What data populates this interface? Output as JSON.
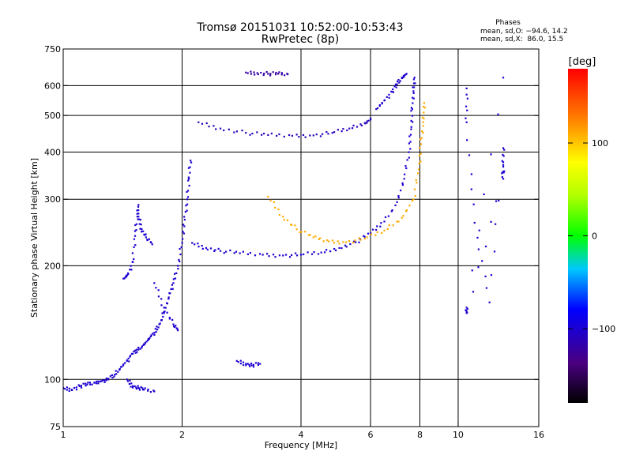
{
  "chart_data": {
    "type": "scatter",
    "title": "Tromsø 20151031 10:52:00-10:53:43",
    "subtitle": "RwPretec (8p)",
    "xlabel": "Frequency [MHz]",
    "ylabel": "Stationary phase Virtual Height [km]",
    "x_scale": "log",
    "y_scale": "log",
    "xlim": [
      1,
      16
    ],
    "ylim": [
      75,
      750
    ],
    "x_ticks": [
      1,
      2,
      4,
      6,
      8,
      10,
      16
    ],
    "x_tick_labels": [
      "1",
      "2",
      "4",
      "6",
      "8",
      "10",
      "16"
    ],
    "y_ticks": [
      75,
      100,
      200,
      300,
      400,
      500,
      600,
      750
    ],
    "y_tick_labels": [
      "75",
      "100",
      "200",
      "300",
      "400",
      "500",
      "600",
      "750"
    ],
    "grid_x": [
      2,
      4,
      6,
      8,
      10
    ],
    "grid_y": [
      100,
      200,
      300,
      400,
      500,
      600
    ],
    "grid": true,
    "stats": {
      "heading": "Phases",
      "line_o": "mean, sd,O: −94.6, 14.2",
      "line_x": "mean, sd,X:  86.0, 15.5"
    },
    "colorbar": {
      "label": "[deg]",
      "range": [
        -180,
        180
      ],
      "ticks": [
        100,
        0,
        -100
      ],
      "tick_labels": [
        "100",
        "0",
        "−100"
      ]
    },
    "traces": [
      {
        "name": "",
        "phase": -100,
        "points": [
          [
            1.0,
            95
          ],
          [
            1.05,
            94
          ],
          [
            1.1,
            96
          ],
          [
            1.15,
            97
          ],
          [
            1.2,
            98
          ],
          [
            1.25,
            99
          ],
          [
            1.3,
            100
          ],
          [
            1.35,
            103
          ],
          [
            1.4,
            108
          ],
          [
            1.45,
            112
          ],
          [
            1.5,
            117
          ],
          [
            1.55,
            120
          ],
          [
            1.6,
            124
          ],
          [
            1.65,
            128
          ],
          [
            1.7,
            133
          ],
          [
            1.75,
            140
          ],
          [
            1.8,
            150
          ],
          [
            1.85,
            165
          ],
          [
            1.9,
            180
          ],
          [
            1.95,
            200
          ],
          [
            2.0,
            230
          ],
          [
            2.03,
            265
          ],
          [
            2.06,
            300
          ],
          [
            2.08,
            340
          ],
          [
            2.1,
            380
          ]
        ]
      },
      {
        "name": "",
        "phase": -100,
        "points": [
          [
            1.42,
            185
          ],
          [
            1.46,
            190
          ],
          [
            1.5,
            205
          ],
          [
            1.52,
            240
          ],
          [
            1.54,
            270
          ],
          [
            1.55,
            290
          ]
        ]
      },
      {
        "name": "",
        "phase": -100,
        "points": [
          [
            1.55,
            270
          ],
          [
            1.58,
            250
          ],
          [
            1.62,
            238
          ],
          [
            1.68,
            228
          ]
        ]
      },
      {
        "name": "",
        "phase": -100,
        "points": [
          [
            1.7,
            180
          ],
          [
            1.8,
            155
          ],
          [
            1.9,
            140
          ],
          [
            1.95,
            135
          ]
        ]
      },
      {
        "name": "",
        "phase": -100,
        "points": [
          [
            1.45,
            100
          ],
          [
            1.5,
            96
          ],
          [
            1.55,
            95
          ],
          [
            1.6,
            94
          ],
          [
            1.7,
            93
          ]
        ]
      },
      {
        "name": "",
        "phase": -100,
        "points": [
          [
            2.12,
            230
          ],
          [
            2.3,
            223
          ],
          [
            2.5,
            219
          ],
          [
            2.8,
            216
          ],
          [
            3.2,
            214
          ],
          [
            3.6,
            213
          ],
          [
            4.0,
            214
          ],
          [
            4.5,
            217
          ],
          [
            5.0,
            223
          ],
          [
            5.5,
            231
          ],
          [
            6.0,
            244
          ],
          [
            6.5,
            262
          ],
          [
            7.0,
            295
          ],
          [
            7.3,
            340
          ],
          [
            7.5,
            400
          ],
          [
            7.6,
            460
          ],
          [
            7.65,
            520
          ],
          [
            7.7,
            580
          ],
          [
            7.75,
            630
          ]
        ]
      },
      {
        "name": "",
        "phase": 110,
        "points": [
          [
            3.3,
            305
          ],
          [
            3.6,
            270
          ],
          [
            3.9,
            250
          ],
          [
            4.3,
            238
          ],
          [
            4.7,
            232
          ],
          [
            5.2,
            231
          ],
          [
            5.8,
            236
          ],
          [
            6.5,
            248
          ],
          [
            7.2,
            268
          ],
          [
            7.7,
            300
          ],
          [
            7.95,
            360
          ],
          [
            8.05,
            420
          ],
          [
            8.15,
            480
          ],
          [
            8.2,
            540
          ]
        ]
      },
      {
        "name": "",
        "phase": -110,
        "points": [
          [
            2.2,
            480
          ],
          [
            2.5,
            462
          ],
          [
            2.9,
            450
          ],
          [
            3.3,
            444
          ],
          [
            3.8,
            442
          ],
          [
            4.3,
            443
          ],
          [
            4.8,
            450
          ],
          [
            5.3,
            462
          ],
          [
            5.8,
            478
          ],
          [
            6.0,
            488
          ]
        ]
      },
      {
        "name": "",
        "phase": -100,
        "points": [
          [
            6.2,
            520
          ],
          [
            6.5,
            548
          ],
          [
            6.8,
            578
          ],
          [
            7.0,
            605
          ],
          [
            7.2,
            630
          ],
          [
            7.4,
            645
          ]
        ]
      },
      {
        "name": "",
        "phase": -120,
        "points": [
          [
            2.9,
            650
          ],
          [
            3.1,
            648
          ],
          [
            3.3,
            645
          ],
          [
            3.5,
            645
          ],
          [
            3.7,
            643
          ]
        ]
      },
      {
        "name": "",
        "phase": -100,
        "points": [
          [
            2.75,
            112
          ],
          [
            2.9,
            110
          ],
          [
            3.0,
            109
          ],
          [
            3.15,
            110
          ]
        ]
      },
      {
        "name": "",
        "phase": -100,
        "points": [
          [
            10.5,
            590
          ],
          [
            10.5,
            480
          ],
          [
            11.0,
            260
          ],
          [
            12.0,
            160
          ],
          [
            13.0,
            410
          ],
          [
            13.0,
            370
          ],
          [
            13.0,
            340
          ],
          [
            10.5,
            150
          ],
          [
            10.5,
            155
          ],
          [
            13.0,
            630
          ]
        ]
      }
    ]
  }
}
